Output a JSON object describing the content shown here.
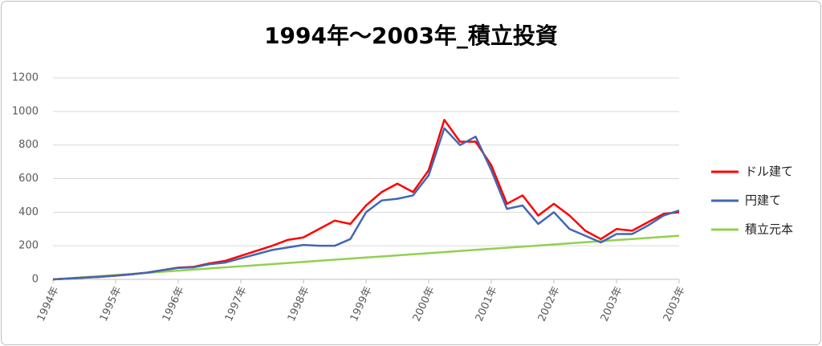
{
  "chart_data": {
    "type": "line",
    "title": "1994年～2003年_積立投資",
    "categories": [
      "1994年",
      null,
      null,
      null,
      "1995年",
      null,
      null,
      null,
      "1996年",
      null,
      null,
      null,
      "1997年",
      null,
      null,
      null,
      "1998年",
      null,
      null,
      null,
      "1999年",
      null,
      null,
      null,
      "2000年",
      null,
      null,
      null,
      "2001年",
      null,
      null,
      null,
      "2002年",
      null,
      null,
      null,
      "2003年",
      null,
      null,
      null,
      "2003年"
    ],
    "series": [
      {
        "name": "ドル建て",
        "color": "#ff0000",
        "values": [
          0,
          5,
          10,
          15,
          22,
          30,
          40,
          55,
          70,
          75,
          95,
          110,
          140,
          170,
          200,
          235,
          250,
          300,
          350,
          330,
          440,
          520,
          570,
          520,
          650,
          950,
          820,
          820,
          680,
          450,
          500,
          380,
          450,
          380,
          290,
          240,
          300,
          290,
          340,
          390,
          400
        ]
      },
      {
        "name": "円建て",
        "color": "#4267b2",
        "values": [
          0,
          5,
          10,
          15,
          22,
          30,
          40,
          55,
          68,
          72,
          90,
          100,
          125,
          150,
          175,
          190,
          205,
          200,
          200,
          240,
          400,
          470,
          480,
          500,
          620,
          900,
          800,
          850,
          650,
          420,
          440,
          330,
          400,
          300,
          260,
          220,
          270,
          270,
          320,
          380,
          410
        ]
      },
      {
        "name": "積立元本",
        "color": "#92d050",
        "values": [
          0,
          6.5,
          13,
          19.5,
          26,
          32.5,
          39,
          45.5,
          52,
          58.5,
          65,
          71.5,
          78,
          84.5,
          91,
          97.5,
          104,
          110.5,
          117,
          123.5,
          130,
          136.5,
          143,
          149.5,
          156,
          162.5,
          169,
          175.5,
          182,
          188.5,
          195,
          201.5,
          208,
          214.5,
          221,
          227.5,
          234,
          240.5,
          247,
          253.5,
          260
        ]
      }
    ],
    "ylim": [
      0,
      1200
    ],
    "yticks": [
      0,
      200,
      400,
      600,
      800,
      1000,
      1200
    ],
    "grid": true,
    "legend": "right"
  }
}
